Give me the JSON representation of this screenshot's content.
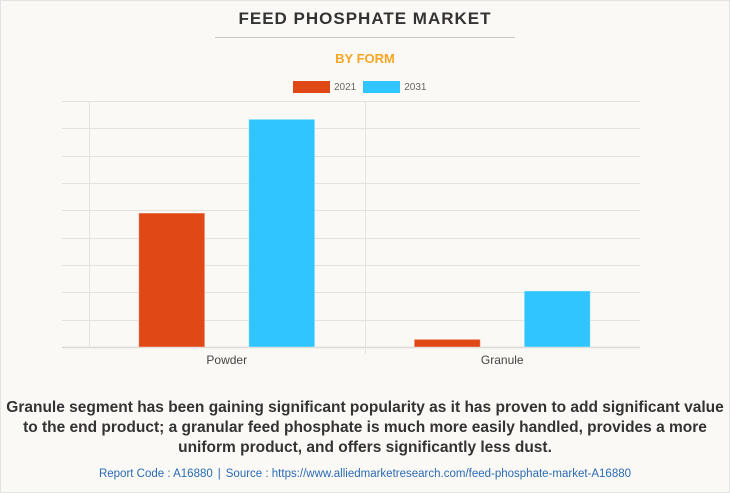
{
  "header": {
    "title": "FEED PHOSPHATE MARKET",
    "subtitle": "BY FORM"
  },
  "colors": {
    "series_2021": "#e04915",
    "series_2031": "#30c5ff",
    "subtitle": "#f5a623",
    "gridline": "#e4e2dc",
    "text": "#333333",
    "footer_link": "#2a6ab3"
  },
  "chart_data": {
    "type": "bar",
    "title": "FEED PHOSPHATE MARKET",
    "subtitle": "BY FORM",
    "categories": [
      "Powder",
      "Granule"
    ],
    "series": [
      {
        "name": "2021",
        "values": [
          4.9,
          0.28
        ]
      },
      {
        "name": "2031",
        "values": [
          8.33,
          2.05
        ]
      }
    ],
    "xlabel": "",
    "ylabel": "",
    "ylim": [
      0,
      9
    ],
    "y_ticks_labeled": false,
    "gridlines": true,
    "legend_position": "top-center"
  },
  "legend": [
    {
      "label": "2021"
    },
    {
      "label": "2031"
    }
  ],
  "caption": "Granule segment has been gaining significant popularity as it has proven to add significant value to the end product; a granular feed phosphate is much more easily handled, provides a more uniform product, and offers significantly less dust.",
  "footer": {
    "report_code": "Report Code : A16880",
    "separator": "|",
    "source": "Source : https://www.alliedmarketresearch.com/feed-phosphate-market-A16880"
  }
}
